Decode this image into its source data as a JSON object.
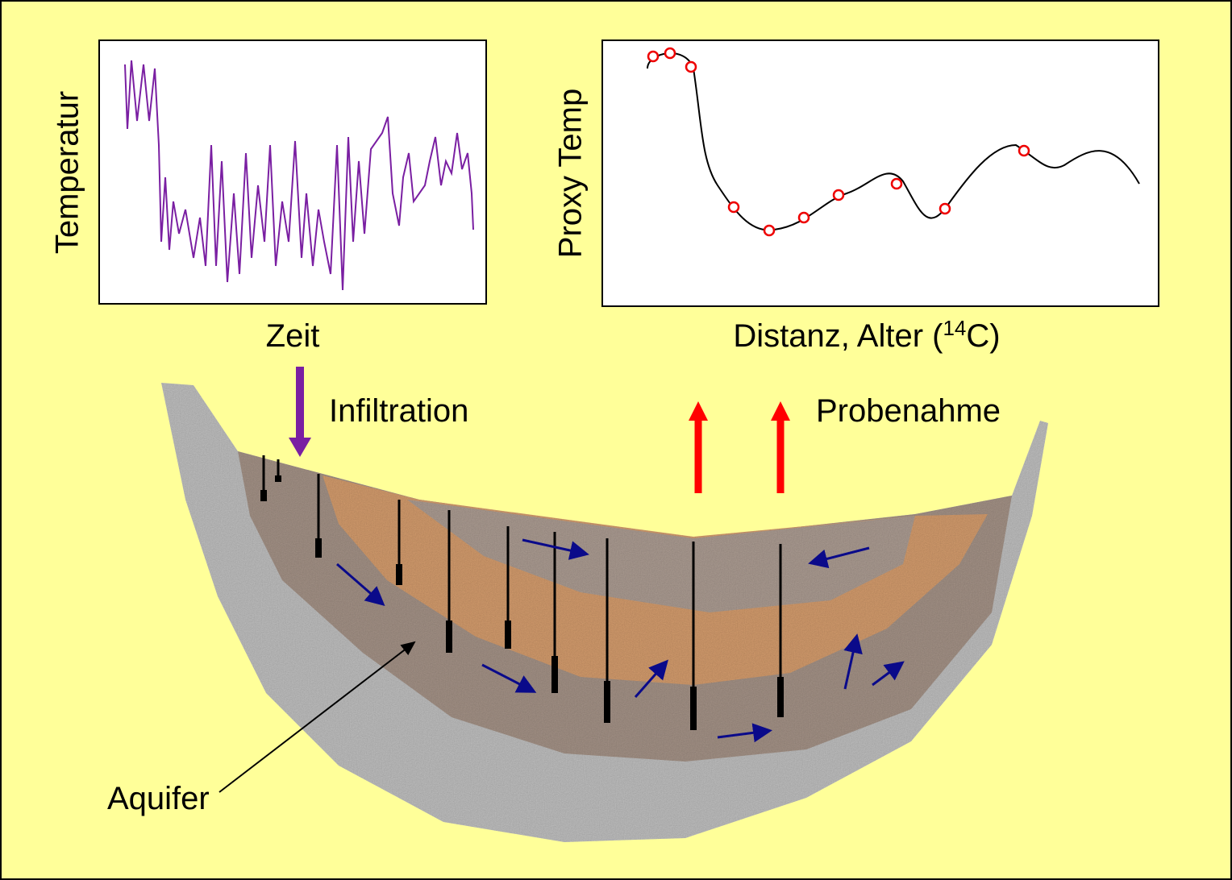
{
  "left_panel": {
    "ylabel": "Temperatur",
    "xlabel": "Zeit"
  },
  "right_panel": {
    "ylabel": "Proxy Temp",
    "xlabel_prefix": "Distanz, Alter (",
    "xlabel_superscript": "14",
    "xlabel_suffix": "C)"
  },
  "labels": {
    "infiltration": "Infiltration",
    "sampling": "Probenahme",
    "aquifer": "Aquifer"
  }
}
